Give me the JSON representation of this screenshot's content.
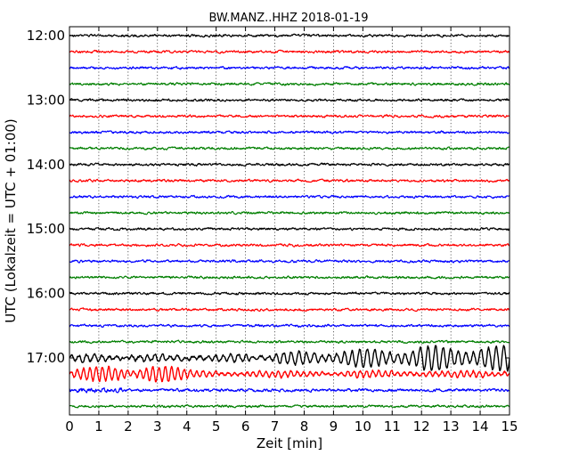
{
  "chart_data": {
    "type": "line",
    "subtype": "dayplot-seismogram",
    "title": "BW.MANZ..HHZ 2018-01-19",
    "xlabel": "Zeit  [min]",
    "ylabel": "UTC (Lokalzeit = UTC + 01:00)",
    "xlim": [
      0,
      15
    ],
    "x_ticks": [
      "0",
      "1",
      "2",
      "3",
      "4",
      "5",
      "6",
      "7",
      "8",
      "9",
      "10",
      "11",
      "12",
      "13",
      "14",
      "15"
    ],
    "y_ticks": [
      "12:00",
      "13:00",
      "14:00",
      "15:00",
      "16:00",
      "17:00"
    ],
    "grid": "vertical-dotted",
    "line_colors": [
      "#000000",
      "#ff0000",
      "#0000ff",
      "#007f00"
    ],
    "traces_start": "12:00",
    "trace_interval_min": 15,
    "trace_count": 24,
    "trace_amplitude_levels": [
      1,
      1,
      1,
      1,
      1,
      1,
      1,
      1,
      1,
      1,
      1,
      1,
      1,
      1,
      1,
      1,
      1,
      1,
      1,
      1,
      8,
      4,
      1,
      1
    ]
  }
}
